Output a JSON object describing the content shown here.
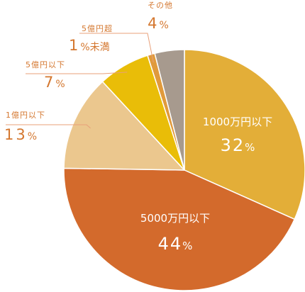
{
  "chart_data": {
    "type": "pie",
    "title": "",
    "slices": [
      {
        "label": "1000万円以下",
        "value": 32,
        "color": "#E3AE38"
      },
      {
        "label": "5000万円以下",
        "value": 44,
        "color": "#D36A2C"
      },
      {
        "label": "1億円以下",
        "value": 13,
        "color": "#EBC78E"
      },
      {
        "label": "5億円以下",
        "value": 7,
        "color": "#E9BD08"
      },
      {
        "label": "5億円超",
        "value": 1,
        "color": "#E09A3C"
      },
      {
        "label": "その他",
        "value": 4,
        "color": "#A79A8E"
      }
    ],
    "value_labels": [
      "32",
      "44",
      "13",
      "7",
      "1",
      "4"
    ],
    "suffixes": [
      "%",
      "%",
      "%",
      "%",
      "%未満",
      "%"
    ],
    "text_color": "#D4772F",
    "leader_color": "#E8A07A"
  }
}
